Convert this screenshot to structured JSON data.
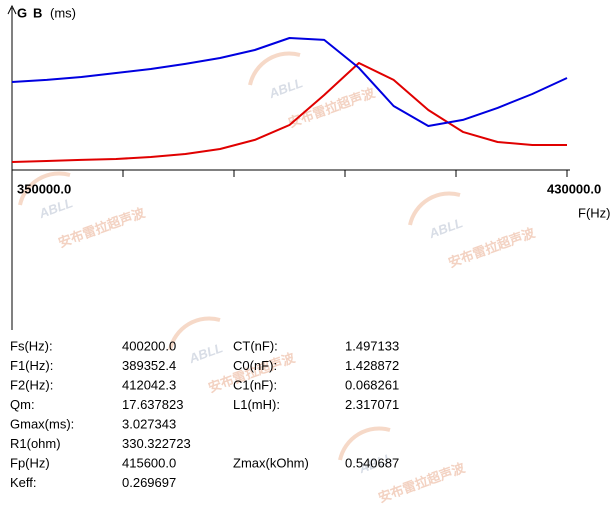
{
  "chart_data": {
    "type": "line",
    "legend": [
      "G",
      "B"
    ],
    "ylabel": "(ms)",
    "xlabel": "F(Hz)",
    "x": [
      350000,
      355000,
      360000,
      365000,
      370000,
      375000,
      380000,
      385000,
      390000,
      395000,
      400000,
      405000,
      410000,
      415000,
      420000,
      425000,
      430000
    ],
    "series": [
      {
        "name": "G",
        "color": "#e00000",
        "values": [
          5,
          5.6,
          6.3,
          6.9,
          8.1,
          10,
          13.1,
          18.8,
          28.1,
          46.9,
          66.9,
          56.3,
          37.5,
          23.8,
          17.5,
          15.6,
          15.6
        ]
      },
      {
        "name": "B",
        "color": "#0000e0",
        "values": [
          55,
          56.3,
          58.1,
          60.6,
          63.1,
          66.3,
          70,
          75,
          82.5,
          81.3,
          63.8,
          40,
          27.5,
          31.3,
          38.8,
          47.5,
          57.5
        ]
      }
    ],
    "xlim": [
      350000,
      430000
    ],
    "xticks": [
      {
        "value": 350000,
        "label": "350000.0"
      },
      {
        "value": 430000,
        "label": "430000.0"
      }
    ],
    "xminor_ticks": [
      366000,
      382000,
      398000,
      414000
    ],
    "ylim": [
      0,
      100
    ]
  },
  "params": {
    "rows": [
      [
        "Fs(Hz):",
        "400200.0",
        "CT(nF):",
        "1.497133"
      ],
      [
        "F1(Hz):",
        "389352.4",
        "C0(nF):",
        "1.428872"
      ],
      [
        "F2(Hz):",
        "412042.3",
        "C1(nF):",
        "0.068261"
      ],
      [
        "Qm:",
        "17.637823",
        "L1(mH):",
        "2.317071"
      ],
      [
        "Gmax(ms):",
        "3.027343"
      ],
      [
        "R1(ohm)",
        "330.322723"
      ],
      [
        "Fp(Hz)",
        "415600.0",
        "Zmax(kOhm)",
        "0.540687"
      ],
      [
        "Keff:",
        "0.269697"
      ]
    ]
  },
  "watermark": {
    "brand": "ABLL",
    "text": "安布雷拉超声波"
  }
}
